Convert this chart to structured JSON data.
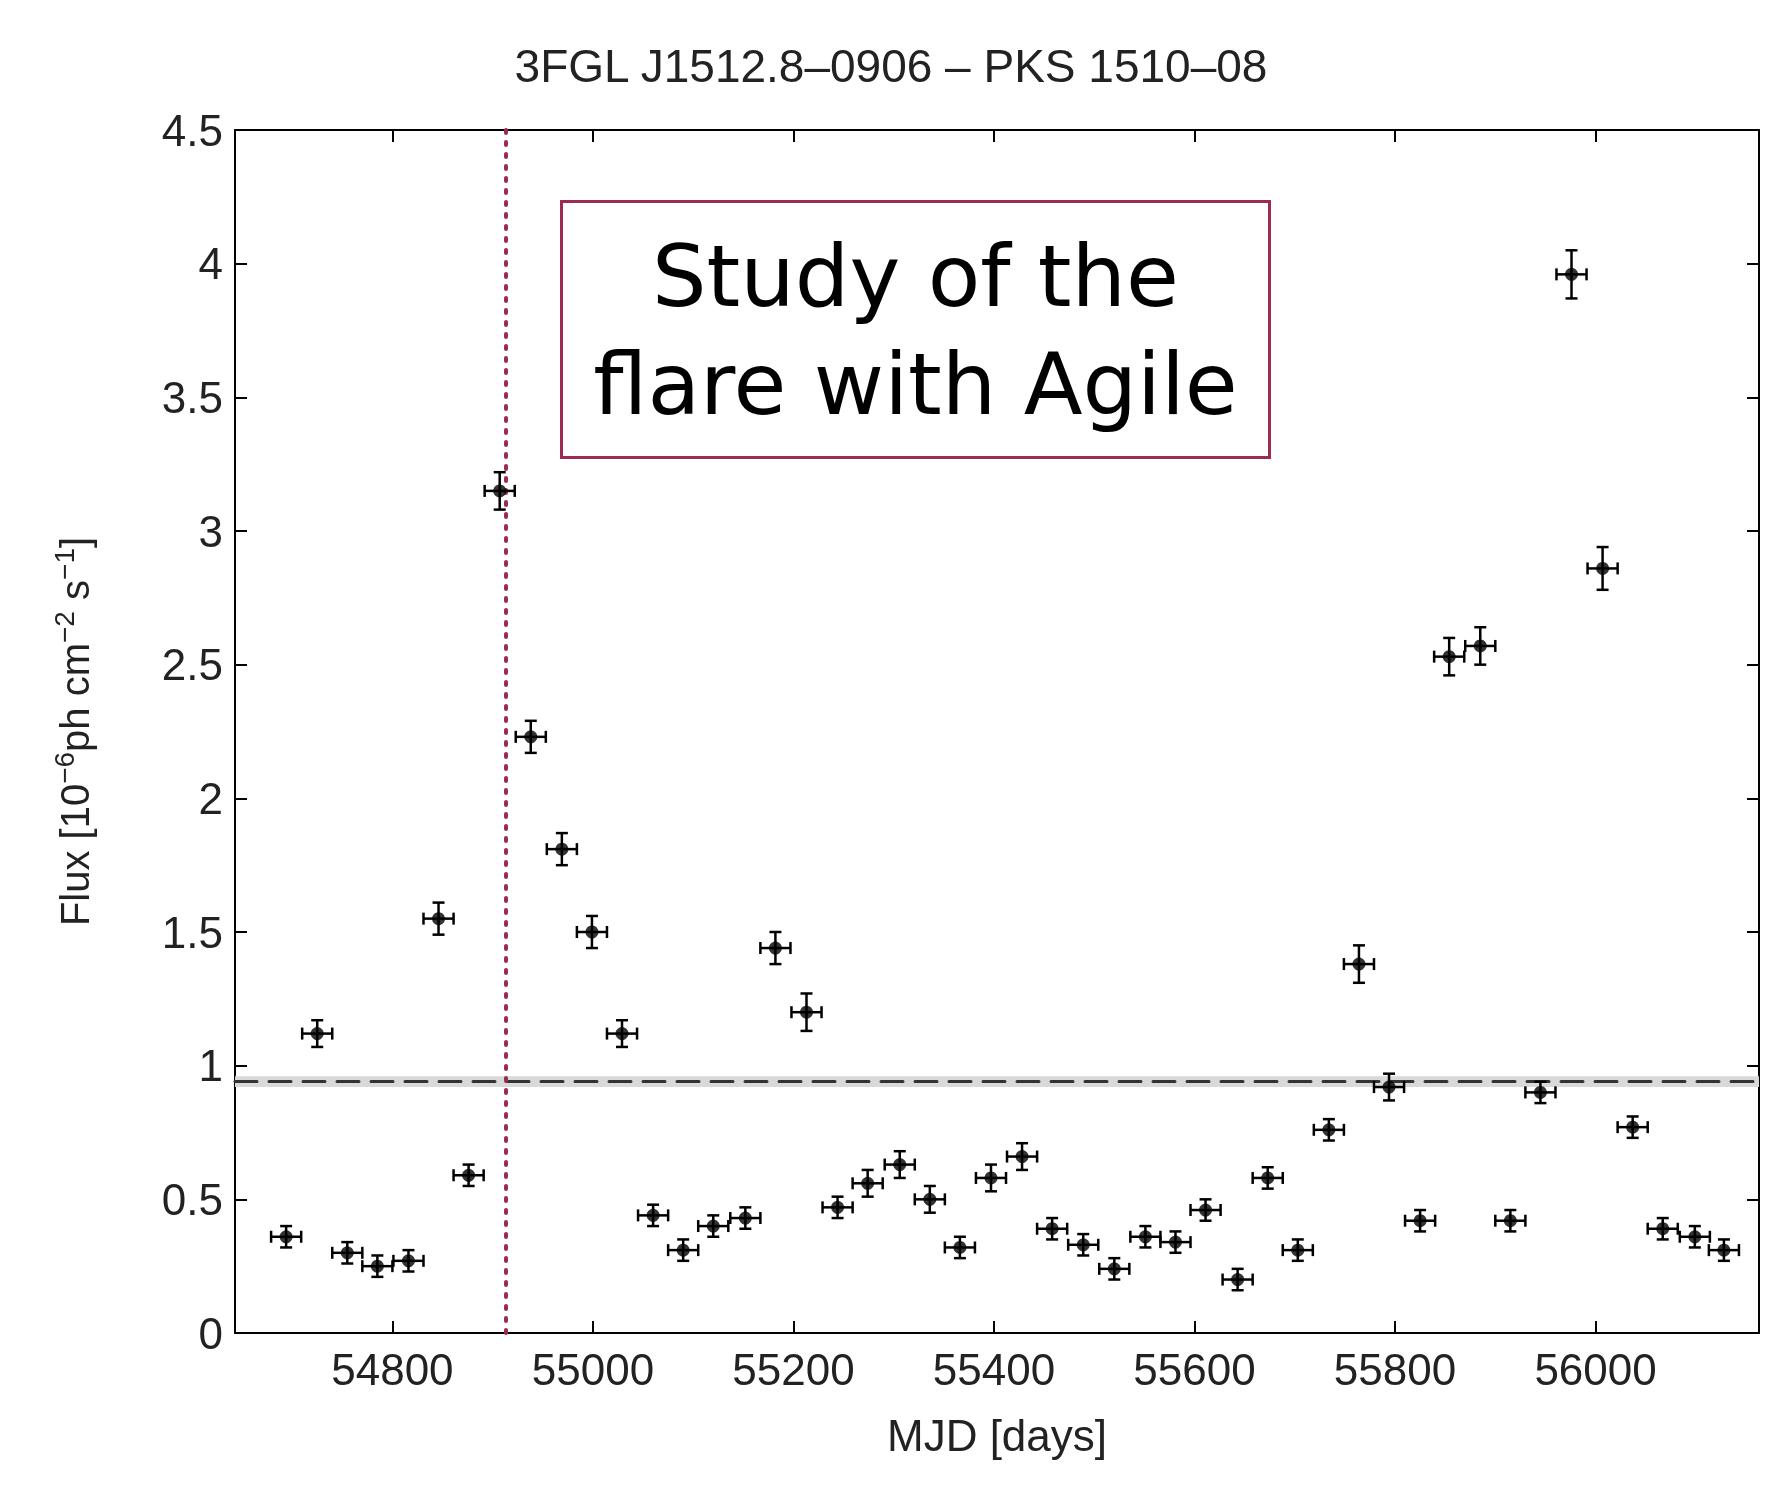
{
  "chart_data": {
    "type": "scatter",
    "title": "3FGL J1512.8–0906 – PKS 1510–08",
    "xlabel": "MJD [days]",
    "ylabel": "Flux [10$^{−6}$ph cm$^{−2}$ s$^{−1}$]",
    "x": [
      54694,
      54725,
      54755,
      54785,
      54816,
      54846,
      54876,
      54907,
      54938,
      54969,
      54999,
      55029,
      55060,
      55090,
      55120,
      55152,
      55182,
      55213,
      55244,
      55274,
      55306,
      55336,
      55366,
      55397,
      55428,
      55458,
      55489,
      55520,
      55551,
      55581,
      55611,
      55643,
      55673,
      55703,
      55734,
      55764,
      55794,
      55825,
      55854,
      55885,
      55915,
      55945,
      55976,
      56007,
      56037,
      56067,
      56099,
      56128
    ],
    "values": [
      0.36,
      1.12,
      0.3,
      0.25,
      0.27,
      1.55,
      0.59,
      3.15,
      2.23,
      1.81,
      1.5,
      1.12,
      0.44,
      0.31,
      0.4,
      0.43,
      1.44,
      1.2,
      0.47,
      0.56,
      0.63,
      0.5,
      0.32,
      0.58,
      0.66,
      0.39,
      0.33,
      0.24,
      0.36,
      0.34,
      0.46,
      0.2,
      0.58,
      0.31,
      0.76,
      1.38,
      0.92,
      0.42,
      2.53,
      2.57,
      0.42,
      0.9,
      3.96,
      2.86,
      0.77,
      0.39,
      0.36,
      0.31
    ],
    "errors": [
      0.04,
      0.05,
      0.04,
      0.04,
      0.04,
      0.06,
      0.04,
      0.07,
      0.06,
      0.06,
      0.06,
      0.05,
      0.04,
      0.04,
      0.04,
      0.04,
      0.06,
      0.07,
      0.04,
      0.05,
      0.05,
      0.05,
      0.04,
      0.05,
      0.05,
      0.04,
      0.04,
      0.04,
      0.04,
      0.04,
      0.04,
      0.04,
      0.04,
      0.04,
      0.04,
      0.07,
      0.05,
      0.04,
      0.07,
      0.07,
      0.04,
      0.04,
      0.09,
      0.08,
      0.04,
      0.04,
      0.04,
      0.04
    ],
    "xerrors": [
      15,
      15,
      15,
      15,
      15,
      15,
      15,
      15,
      15,
      15,
      15,
      15,
      15,
      15,
      15,
      15,
      15,
      15,
      15,
      15,
      15,
      15,
      15,
      15,
      15,
      15,
      15,
      15,
      15,
      15,
      15,
      15,
      15,
      15,
      15,
      15,
      15,
      15,
      15,
      15,
      15,
      15,
      15,
      15,
      15,
      15,
      15,
      15
    ],
    "color": "#000000",
    "marker": "circle",
    "grid": false,
    "xlim": [
      54643,
      56163
    ],
    "xticks": [
      54800,
      55000,
      55200,
      55400,
      55600,
      55800,
      56000
    ],
    "ylim": [
      0,
      4.5
    ],
    "yticks": [
      0,
      0.5,
      1,
      1.5,
      2,
      2.5,
      3,
      3.5,
      4,
      4.5
    ],
    "ref_lines": [
      {
        "axis": "y",
        "value": 0.94,
        "line_style": "dashed",
        "color": "#333333"
      },
      {
        "axis": "x",
        "value": 54913,
        "line_style": "dotted",
        "color": "#9b2a55"
      }
    ],
    "bands": [
      {
        "axis": "y",
        "from": 0.92,
        "to": 0.96,
        "color": "#d9d9d9"
      }
    ],
    "annotations": [
      "Study of the flare with Agile"
    ]
  }
}
